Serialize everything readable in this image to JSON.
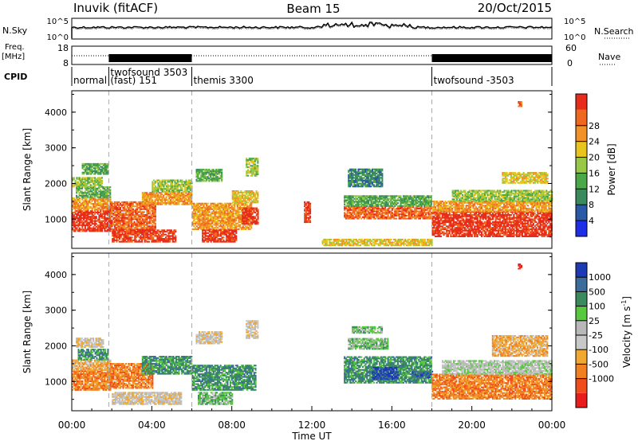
{
  "header": {
    "station": "Inuvik (fitACF)",
    "beam": "Beam 15",
    "date": "20/Oct/2015"
  },
  "nsky": {
    "label": "N.Sky",
    "ticks": [
      "10^5",
      "10^0"
    ],
    "right_ticks": [
      "10^5",
      "10^0"
    ],
    "right_label": "N.Search"
  },
  "freq": {
    "label_line1": "Freq.",
    "label_line2": "[MHz]",
    "ticks": [
      "18",
      "8"
    ],
    "right_ticks": [
      "60",
      "0"
    ],
    "right_label": "Nave"
  },
  "cpid": {
    "label": "CPID",
    "segments": [
      {
        "start": 0,
        "end": 1.85,
        "label": "normal",
        "label2": ""
      },
      {
        "start": 1.85,
        "end": 6.0,
        "label": "twofsound 3503",
        "label2": "(fast) 151"
      },
      {
        "start": 6.0,
        "end": 18.0,
        "label": "themis 3300",
        "label2": ""
      },
      {
        "start": 18.0,
        "end": 24.0,
        "label": "twofsound -3503",
        "label2": ""
      }
    ]
  },
  "colors": {
    "power": [
      "#1e2ee6",
      "#2a5aa6",
      "#3a8a5e",
      "#4aa848",
      "#98c848",
      "#e8c41c",
      "#f09228",
      "#f06820",
      "#e82c1c"
    ],
    "velocity": [
      "#e81c1c",
      "#f04c1c",
      "#f08020",
      "#f0a830",
      "#c8c8c8",
      "#b8b8b8",
      "#58c840",
      "#3a8a5e",
      "#3c6c9c",
      "#1c3ab4"
    ]
  },
  "chart_data": [
    {
      "type": "heatmap",
      "name": "power",
      "ylabel": "Slant Range [km]",
      "ylim": [
        180,
        4600
      ],
      "yticks": [
        "1000",
        "2000",
        "3000",
        "4000"
      ],
      "ytick_values": [
        1000,
        2000,
        3000,
        4000
      ],
      "colorbar": {
        "label": "Power [dB]",
        "ticks": [
          "4",
          "8",
          "12",
          "16",
          "20",
          "24",
          "28"
        ]
      },
      "regions": [
        {
          "t0": 0.0,
          "t1": 1.9,
          "r0": 650,
          "r1": 1250,
          "level": 8
        },
        {
          "t0": 0.0,
          "t1": 1.9,
          "r0": 1250,
          "r1": 1600,
          "level": 6
        },
        {
          "t0": 0.2,
          "t1": 1.9,
          "r0": 1600,
          "r1": 1900,
          "level": 3
        },
        {
          "t0": 0.0,
          "t1": 1.5,
          "r0": 1900,
          "r1": 2150,
          "level": 4
        },
        {
          "t0": 0.5,
          "t1": 1.8,
          "r0": 2250,
          "r1": 2550,
          "level": 3
        },
        {
          "t0": 1.9,
          "t1": 4.2,
          "r0": 700,
          "r1": 1500,
          "level": 7
        },
        {
          "t0": 2.0,
          "t1": 5.2,
          "r0": 350,
          "r1": 700,
          "level": 8
        },
        {
          "t0": 3.5,
          "t1": 6.0,
          "r0": 1400,
          "r1": 1750,
          "level": 6
        },
        {
          "t0": 4.0,
          "t1": 6.0,
          "r0": 1750,
          "r1": 2100,
          "level": 4
        },
        {
          "t0": 6.0,
          "t1": 9.0,
          "r0": 700,
          "r1": 1450,
          "level": 6
        },
        {
          "t0": 6.5,
          "t1": 8.2,
          "r0": 350,
          "r1": 700,
          "level": 8
        },
        {
          "t0": 6.2,
          "t1": 7.5,
          "r0": 2050,
          "r1": 2400,
          "level": 3
        },
        {
          "t0": 8.0,
          "t1": 9.3,
          "r0": 1450,
          "r1": 1800,
          "level": 5
        },
        {
          "t0": 8.5,
          "t1": 9.3,
          "r0": 850,
          "r1": 1300,
          "level": 8
        },
        {
          "t0": 8.7,
          "t1": 9.3,
          "r0": 2200,
          "r1": 2700,
          "level": 4
        },
        {
          "t0": 11.6,
          "t1": 11.9,
          "r0": 900,
          "r1": 1500,
          "level": 8
        },
        {
          "t0": 13.6,
          "t1": 18.0,
          "r0": 1000,
          "r1": 1350,
          "level": 7
        },
        {
          "t0": 13.6,
          "t1": 18.0,
          "r0": 1350,
          "r1": 1650,
          "level": 3
        },
        {
          "t0": 13.8,
          "t1": 15.5,
          "r0": 1900,
          "r1": 2400,
          "level": 2
        },
        {
          "t0": 12.5,
          "t1": 18.0,
          "r0": 250,
          "r1": 450,
          "level": 5
        },
        {
          "t0": 18.0,
          "t1": 24.0,
          "r0": 500,
          "r1": 1200,
          "level": 8
        },
        {
          "t0": 18.0,
          "t1": 24.0,
          "r0": 1200,
          "r1": 1500,
          "level": 6
        },
        {
          "t0": 19.0,
          "t1": 24.0,
          "r0": 1500,
          "r1": 1800,
          "level": 4
        },
        {
          "t0": 21.5,
          "t1": 23.8,
          "r0": 2000,
          "r1": 2300,
          "level": 5
        },
        {
          "t0": 22.3,
          "t1": 22.5,
          "r0": 4150,
          "r1": 4300,
          "level": 7
        }
      ]
    },
    {
      "type": "heatmap",
      "name": "velocity",
      "xlabel": "Time UT",
      "ylabel": "Slant Range [km]",
      "ylim": [
        180,
        4600
      ],
      "yticks": [
        "1000",
        "2000",
        "3000",
        "4000"
      ],
      "ytick_values": [
        1000,
        2000,
        3000,
        4000
      ],
      "xlim": [
        0,
        24
      ],
      "xticks": [
        "00:00",
        "04:00",
        "08:00",
        "12:00",
        "16:00",
        "20:00",
        "00:00"
      ],
      "xtick_values": [
        0,
        4,
        8,
        12,
        16,
        20,
        24
      ],
      "colorbar": {
        "label": "Velocity [m s",
        "label_sup": "-1",
        "label_end": "]",
        "ticks": [
          "1000",
          "500",
          "100",
          "25",
          "-25",
          "-100",
          "-500",
          "-1000"
        ]
      },
      "regions": [
        {
          "t0": 0.0,
          "t1": 1.9,
          "r0": 750,
          "r1": 1300,
          "level": 2
        },
        {
          "t0": 0.0,
          "t1": 1.9,
          "r0": 1300,
          "r1": 1600,
          "level": 3
        },
        {
          "t0": 0.3,
          "t1": 1.8,
          "r0": 1600,
          "r1": 1900,
          "level": 7
        },
        {
          "t0": 0.2,
          "t1": 1.6,
          "r0": 1950,
          "r1": 2200,
          "level": 4
        },
        {
          "t0": 1.9,
          "t1": 4.0,
          "r0": 800,
          "r1": 1500,
          "level": 2
        },
        {
          "t0": 2.0,
          "t1": 5.5,
          "r0": 350,
          "r1": 700,
          "level": 4
        },
        {
          "t0": 3.5,
          "t1": 6.0,
          "r0": 1200,
          "r1": 1700,
          "level": 7
        },
        {
          "t0": 6.0,
          "t1": 9.2,
          "r0": 750,
          "r1": 1450,
          "level": 7
        },
        {
          "t0": 6.3,
          "t1": 8.0,
          "r0": 350,
          "r1": 700,
          "level": 6
        },
        {
          "t0": 6.2,
          "t1": 7.5,
          "r0": 2050,
          "r1": 2400,
          "level": 4
        },
        {
          "t0": 8.7,
          "t1": 9.3,
          "r0": 2200,
          "r1": 2700,
          "level": 4
        },
        {
          "t0": 13.6,
          "t1": 18.0,
          "r0": 950,
          "r1": 1700,
          "level": 7
        },
        {
          "t0": 15.0,
          "t1": 16.3,
          "r0": 1050,
          "r1": 1400,
          "level": 9
        },
        {
          "t0": 17.0,
          "t1": 18.0,
          "r0": 1100,
          "r1": 1300,
          "level": 8
        },
        {
          "t0": 13.8,
          "t1": 15.8,
          "r0": 1900,
          "r1": 2200,
          "level": 6
        },
        {
          "t0": 14.0,
          "t1": 15.5,
          "r0": 2350,
          "r1": 2550,
          "level": 6
        },
        {
          "t0": 18.0,
          "t1": 24.0,
          "r0": 500,
          "r1": 1200,
          "level": 2
        },
        {
          "t0": 18.5,
          "t1": 24.0,
          "r0": 1200,
          "r1": 1600,
          "level": 5
        },
        {
          "t0": 21.0,
          "t1": 23.8,
          "r0": 1700,
          "r1": 2300,
          "level": 3
        },
        {
          "t0": 22.3,
          "t1": 22.5,
          "r0": 4150,
          "r1": 4300,
          "level": 0
        }
      ]
    }
  ]
}
